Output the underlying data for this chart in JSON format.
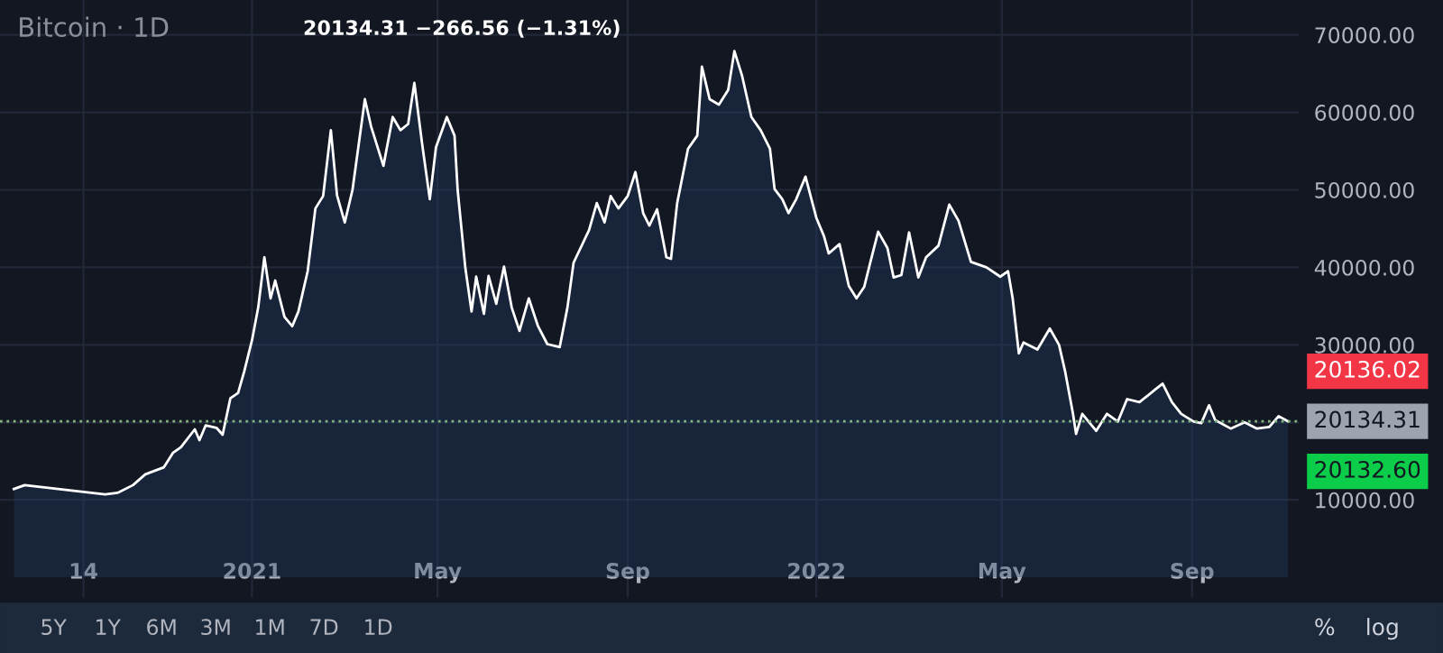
{
  "chart_data": {
    "type": "area",
    "title": "Bitcoin · 1D",
    "subtitle": "20134.31 −266.56 (−1.31%)",
    "x": [
      "2020-07-31",
      "2020-08-07",
      "2020-09-19",
      "2020-09-28",
      "2020-10-06",
      "2020-10-16",
      "2020-10-24",
      "2020-11-05",
      "2020-11-11",
      "2020-11-16",
      "2020-11-25",
      "2020-11-28",
      "2020-12-02",
      "2020-12-09",
      "2020-12-13",
      "2020-12-18",
      "2020-12-23",
      "2020-12-27",
      "2021-01-01",
      "2021-01-05",
      "2021-01-09",
      "2021-01-13",
      "2021-01-16",
      "2021-01-22",
      "2021-01-27",
      "2021-01-31",
      "2021-02-06",
      "2021-02-11",
      "2021-02-16",
      "2021-02-21",
      "2021-02-25",
      "2021-03-02",
      "2021-03-07",
      "2021-03-15",
      "2021-03-19",
      "2021-03-27",
      "2021-04-02",
      "2021-04-07",
      "2021-04-12",
      "2021-04-16",
      "2021-04-21",
      "2021-04-26",
      "2021-04-30",
      "2021-05-07",
      "2021-05-12",
      "2021-05-14",
      "2021-05-19",
      "2021-05-23",
      "2021-05-26",
      "2021-05-31",
      "2021-06-03",
      "2021-06-08",
      "2021-06-13",
      "2021-06-18",
      "2021-06-23",
      "2021-06-29",
      "2021-07-05",
      "2021-07-11",
      "2021-07-19",
      "2021-07-24",
      "2021-07-28",
      "2021-08-07",
      "2021-08-12",
      "2021-08-17",
      "2021-08-21",
      "2021-08-26",
      "2021-09-01",
      "2021-09-06",
      "2021-09-11",
      "2021-09-15",
      "2021-09-20",
      "2021-09-26",
      "2021-09-29",
      "2021-10-03",
      "2021-10-10",
      "2021-10-16",
      "2021-10-19",
      "2021-10-24",
      "2021-10-30",
      "2021-11-05",
      "2021-11-09",
      "2021-11-14",
      "2021-11-20",
      "2021-11-26",
      "2021-12-02",
      "2021-12-05",
      "2021-12-10",
      "2021-12-14",
      "2021-12-19",
      "2021-12-25",
      "2022-01-01",
      "2022-01-06",
      "2022-01-09",
      "2022-01-16",
      "2022-01-22",
      "2022-01-27",
      "2022-02-01",
      "2022-02-05",
      "2022-02-10",
      "2022-02-16",
      "2022-02-20",
      "2022-02-25",
      "2022-03-02",
      "2022-03-08",
      "2022-03-13",
      "2022-03-21",
      "2022-03-28",
      "2022-04-03",
      "2022-04-11",
      "2022-04-21",
      "2022-04-30",
      "2022-05-05",
      "2022-05-08",
      "2022-05-12",
      "2022-05-15",
      "2022-05-24",
      "2022-06-01",
      "2022-06-07",
      "2022-06-11",
      "2022-06-16",
      "2022-06-18",
      "2022-06-22",
      "2022-07-01",
      "2022-07-08",
      "2022-07-15",
      "2022-07-21",
      "2022-07-29",
      "2022-08-08",
      "2022-08-13",
      "2022-08-19",
      "2022-08-25",
      "2022-09-02",
      "2022-09-07",
      "2022-09-12",
      "2022-09-16",
      "2022-09-26",
      "2022-10-05",
      "2022-10-13",
      "2022-10-21",
      "2022-10-27",
      "2022-11-02"
    ],
    "series": [
      {
        "color": "#ffffff",
        "values": [
          11400,
          11900,
          10900,
          10700,
          10900,
          11900,
          13300,
          14200,
          16100,
          16800,
          19100,
          17700,
          19600,
          19300,
          18400,
          23100,
          23800,
          26600,
          30600,
          34800,
          41300,
          36000,
          38300,
          33600,
          32400,
          34300,
          39500,
          47600,
          49200,
          57700,
          49300,
          45800,
          50000,
          61700,
          58200,
          53100,
          59400,
          57700,
          58500,
          63800,
          56000,
          48800,
          55500,
          59400,
          57000,
          50000,
          39900,
          34300,
          38800,
          34000,
          38900,
          35300,
          40100,
          34800,
          31800,
          36000,
          32400,
          30100,
          29700,
          34800,
          40600,
          44800,
          48300,
          45800,
          49200,
          47600,
          49200,
          52300,
          47000,
          45400,
          47500,
          41300,
          41100,
          48300,
          55300,
          57000,
          65900,
          61700,
          61000,
          62900,
          67900,
          64700,
          59400,
          57700,
          55300,
          50100,
          48800,
          47000,
          48800,
          51700,
          46400,
          44000,
          41800,
          43000,
          37600,
          36000,
          37500,
          40700,
          44600,
          42500,
          38700,
          39000,
          44500,
          38700,
          41300,
          42800,
          48100,
          46000,
          40700,
          40000,
          38800,
          39500,
          36000,
          28900,
          30300,
          29400,
          32100,
          30000,
          26500,
          21100,
          18500,
          21100,
          18900,
          21100,
          20100,
          23000,
          22600,
          24200,
          25000,
          22600,
          21100,
          20100,
          19900,
          22200,
          20300,
          19200,
          20000,
          19200,
          19400,
          20800,
          20134.31
        ]
      }
    ],
    "xlim": [
      "2020-07-22",
      "2022-11-09"
    ],
    "xticks": [
      {
        "value": "2020-09-14",
        "label": "14"
      },
      {
        "value": "2021-01-01",
        "label": "2021"
      },
      {
        "value": "2021-05-01",
        "label": "May"
      },
      {
        "value": "2021-09-01",
        "label": "Sep"
      },
      {
        "value": "2022-01-01",
        "label": "2022"
      },
      {
        "value": "2022-05-01",
        "label": "May"
      },
      {
        "value": "2022-09-01",
        "label": "Sep"
      }
    ],
    "ylim": [
      -2600,
      74500
    ],
    "yticks": [
      {
        "value": 10000,
        "label": "10000.00"
      },
      {
        "value": 20000,
        "label": null
      },
      {
        "value": 30000,
        "label": "30000.00"
      },
      {
        "value": 40000,
        "label": "40000.00"
      },
      {
        "value": 50000,
        "label": "50000.00"
      },
      {
        "value": 60000,
        "label": "60000.00"
      },
      {
        "value": 70000,
        "label": "70000.00"
      }
    ],
    "ref_lines": [
      {
        "axis": "y",
        "value": 20134.31,
        "label": "20134.31",
        "color": "#7fb37f",
        "line_style": "dotted"
      }
    ],
    "annotations": [
      "20136.02",
      "20132.60",
      "5Y",
      "1Y",
      "6M",
      "3M",
      "1M",
      "7D",
      "1D",
      "%",
      "log"
    ],
    "grid": true
  }
}
